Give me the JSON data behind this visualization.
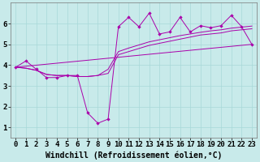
{
  "title": "",
  "xlabel": "Windchill (Refroidissement éolien,°C)",
  "background_color": "#c8eaea",
  "grid_color": "#a8d8d8",
  "line_color": "#aa00aa",
  "xlim": [
    -0.5,
    23.5
  ],
  "ylim": [
    0.5,
    7.0
  ],
  "xticks": [
    0,
    1,
    2,
    3,
    4,
    5,
    6,
    7,
    8,
    9,
    10,
    11,
    12,
    13,
    14,
    15,
    16,
    17,
    18,
    19,
    20,
    21,
    22,
    23
  ],
  "yticks": [
    1,
    2,
    3,
    4,
    5,
    6
  ],
  "series1_x": [
    0,
    1,
    2,
    3,
    4,
    5,
    6,
    7,
    8,
    9,
    10,
    11,
    12,
    13,
    14,
    15,
    16,
    17,
    18,
    19,
    20,
    21,
    22,
    23
  ],
  "series1_y": [
    3.9,
    4.2,
    3.8,
    3.4,
    3.4,
    3.5,
    3.5,
    1.7,
    1.2,
    1.4,
    5.85,
    6.3,
    5.85,
    6.5,
    5.5,
    5.6,
    6.3,
    5.6,
    5.9,
    5.8,
    5.9,
    6.4,
    5.85,
    5.0
  ],
  "series2_x": [
    0,
    1,
    2,
    3,
    4,
    5,
    6,
    7,
    8,
    9,
    10,
    11,
    12,
    13,
    14,
    15,
    16,
    17,
    18,
    19,
    20,
    21,
    22,
    23
  ],
  "series2_y": [
    3.9,
    3.85,
    3.75,
    3.55,
    3.5,
    3.5,
    3.45,
    3.45,
    3.5,
    3.6,
    4.5,
    4.65,
    4.8,
    4.95,
    5.05,
    5.15,
    5.25,
    5.35,
    5.45,
    5.5,
    5.55,
    5.65,
    5.7,
    5.75
  ],
  "series3_x": [
    0,
    1,
    2,
    3,
    4,
    5,
    6,
    7,
    8,
    9,
    10,
    11,
    12,
    13,
    14,
    15,
    16,
    17,
    18,
    19,
    20,
    21,
    22,
    23
  ],
  "series3_y": [
    3.9,
    3.85,
    3.75,
    3.55,
    3.5,
    3.5,
    3.45,
    3.45,
    3.5,
    3.8,
    4.65,
    4.82,
    4.97,
    5.12,
    5.22,
    5.32,
    5.42,
    5.5,
    5.58,
    5.65,
    5.7,
    5.78,
    5.83,
    5.88
  ],
  "series4_x": [
    0,
    23
  ],
  "series4_y": [
    3.9,
    5.0
  ],
  "fontsize_tick": 6.5,
  "fontsize_label": 7
}
